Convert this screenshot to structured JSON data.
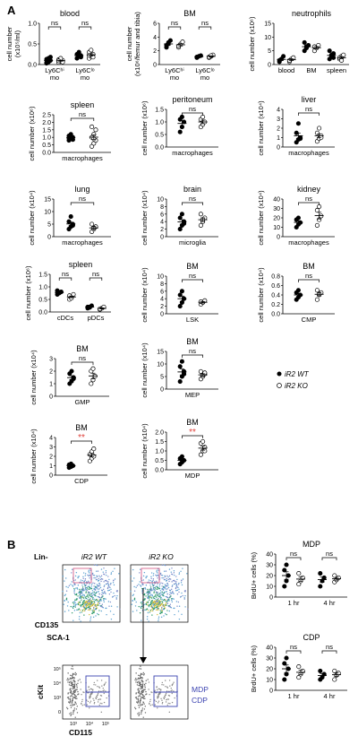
{
  "panel_labels": {
    "a": "A",
    "b": "B"
  },
  "legend": {
    "wt": "iR2 WT",
    "ko": "iR2 KO"
  },
  "ns": "ns",
  "sig": "**",
  "panels": [
    {
      "title": "blood",
      "ylabel": [
        "cell number",
        "(x10⁵/ml)"
      ],
      "yticks": [
        "0.0",
        "0.5",
        "1.0"
      ],
      "ymax": 1.0,
      "groups": [
        {
          "label": [
            "Ly6Cʰⁱ",
            "mo"
          ],
          "wt": [
            0.05,
            0.08,
            0.1,
            0.13,
            0.15,
            0.18,
            0.03,
            0.06
          ],
          "ko": [
            0.05,
            0.08,
            0.1,
            0.12,
            0.15,
            0.06,
            0.09
          ]
        },
        {
          "label": [
            "Ly6Cˡᵒ",
            "mo"
          ],
          "wt": [
            0.15,
            0.2,
            0.22,
            0.25,
            0.3,
            0.18
          ],
          "ko": [
            0.15,
            0.2,
            0.25,
            0.3,
            0.35,
            0.18,
            0.22
          ]
        }
      ],
      "ns": [
        true,
        true
      ]
    },
    {
      "title": "BM",
      "ylabel": [
        "cell number",
        "(x10⁶/femur and tibia)"
      ],
      "yticks": [
        "0",
        "2",
        "4",
        "6"
      ],
      "ymax": 6,
      "groups": [
        {
          "label": [
            "Ly6Cʰⁱ",
            "mo"
          ],
          "wt": [
            2.5,
            3.0,
            3.5,
            2.8,
            3.2
          ],
          "ko": [
            2.5,
            3.0,
            3.3,
            2.7
          ]
        },
        {
          "label": [
            "Ly6Cˡᵒ",
            "mo"
          ],
          "wt": [
            1.0,
            1.2,
            1.3,
            1.1
          ],
          "ko": [
            1.0,
            1.2,
            1.4,
            1.1,
            1.3
          ]
        }
      ],
      "ns": [
        true,
        true
      ]
    },
    {
      "title": "neutrophils",
      "ylabel": [
        "cell number (x10⁶)"
      ],
      "yticks": [
        "0",
        "5",
        "10",
        "15"
      ],
      "ymax": 15,
      "groups": [
        {
          "label": [
            "blood"
          ],
          "wt": [
            1,
            2,
            3,
            1.5
          ],
          "ko": [
            1,
            2,
            2.5,
            1.5
          ]
        },
        {
          "label": [
            "BM"
          ],
          "wt": [
            5,
            6,
            7,
            8,
            6.5
          ],
          "ko": [
            5,
            6,
            7,
            6.5
          ]
        },
        {
          "label": [
            "spleen"
          ],
          "wt": [
            2,
            3,
            4,
            5,
            3.5,
            2.5
          ],
          "ko": [
            2,
            3,
            3.5,
            2.5,
            1.5
          ]
        }
      ],
      "ns": []
    },
    {
      "title": "spleen",
      "ylabel": [
        "cell number (x10⁶)"
      ],
      "yticks": [
        "0.0",
        "0.5",
        "1.0",
        "1.5",
        "2.0",
        "2.5"
      ],
      "ymax": 2.5,
      "groups": [
        {
          "label": [
            "macrophages"
          ],
          "wt": [
            0.8,
            0.9,
            1.0,
            1.1,
            1.2,
            0.85,
            0.95,
            1.05
          ],
          "ko": [
            0.4,
            0.6,
            0.8,
            1.0,
            1.2,
            1.5,
            1.7,
            0.9
          ]
        }
      ],
      "ns": [
        true
      ]
    },
    {
      "title": "peritoneum",
      "ylabel": [
        "cell number (x10⁶)"
      ],
      "yticks": [
        "0.0",
        "0.5",
        "1.0",
        "1.5"
      ],
      "ymax": 1.5,
      "groups": [
        {
          "label": [
            "macrophages"
          ],
          "wt": [
            0.6,
            0.8,
            1.0,
            1.1,
            1.2
          ],
          "ko": [
            0.8,
            0.9,
            1.0,
            1.1,
            1.2
          ]
        }
      ],
      "ns": [
        true
      ]
    },
    {
      "title": "liver",
      "ylabel": [
        "cell number (x10⁴)"
      ],
      "yticks": [
        "0",
        "1",
        "2",
        "3",
        "4"
      ],
      "ymax": 4,
      "groups": [
        {
          "label": [
            "macrophages"
          ],
          "wt": [
            0.5,
            0.8,
            1.0,
            1.5,
            2.5,
            0.9
          ],
          "ko": [
            0.6,
            0.9,
            1.2,
            1.5,
            2.0,
            1.0
          ]
        }
      ],
      "ns": [
        true
      ]
    },
    {
      "title": "lung",
      "ylabel": [
        "cell number (x10⁴)"
      ],
      "yticks": [
        "0",
        "5",
        "10",
        "15"
      ],
      "ymax": 15,
      "groups": [
        {
          "label": [
            "macrophages"
          ],
          "wt": [
            3,
            4,
            5,
            6,
            8,
            4.5
          ],
          "ko": [
            2,
            3,
            4,
            5,
            3.5
          ]
        }
      ],
      "ns": [
        true
      ]
    },
    {
      "title": "brain",
      "ylabel": [
        "cell number (x10⁴)"
      ],
      "yticks": [
        "0",
        "2",
        "4",
        "6",
        "8",
        "10"
      ],
      "ymax": 10,
      "groups": [
        {
          "label": [
            "microglia"
          ],
          "wt": [
            2,
            3,
            4,
            5,
            6,
            3.5
          ],
          "ko": [
            3,
            4,
            5,
            6,
            4.5
          ]
        }
      ],
      "ns": [
        true
      ]
    },
    {
      "title": "kidney",
      "ylabel": [
        "cell number (x10⁴)"
      ],
      "yticks": [
        "0",
        "10",
        "20",
        "30",
        "40"
      ],
      "ymax": 40,
      "groups": [
        {
          "label": [
            "macrophages"
          ],
          "wt": [
            10,
            13,
            15,
            18,
            20
          ],
          "ko": [
            12,
            18,
            22,
            28,
            32
          ]
        }
      ],
      "ns": [
        true
      ]
    },
    {
      "title": "spleen",
      "ylabel": [
        "cell number (x10⁶)"
      ],
      "yticks": [
        "0.0",
        "0.5",
        "1.0",
        "1.5"
      ],
      "ymax": 1.5,
      "groups": [
        {
          "label": [
            "cDCs"
          ],
          "wt": [
            0.7,
            0.75,
            0.8,
            0.85,
            0.78
          ],
          "ko": [
            0.5,
            0.6,
            0.7,
            0.65,
            0.55
          ]
        },
        {
          "label": [
            "pDCs"
          ],
          "wt": [
            0.15,
            0.2,
            0.25,
            0.2,
            0.18
          ],
          "ko": [
            0.1,
            0.15,
            0.2,
            0.12
          ]
        }
      ],
      "ns": [
        true,
        true
      ]
    },
    {
      "title": "BM",
      "ylabel": [
        "cell number (x10⁴)"
      ],
      "yticks": [
        "0",
        "2",
        "4",
        "6",
        "8",
        "10"
      ],
      "ymax": 10,
      "groups": [
        {
          "label": [
            "LSK"
          ],
          "wt": [
            2,
            3,
            4,
            5,
            6
          ],
          "ko": [
            2.5,
            3,
            3.5,
            3.2
          ]
        }
      ],
      "ns": [
        true
      ]
    },
    {
      "title": "BM",
      "ylabel": [
        "cell number (x10⁴)"
      ],
      "yticks": [
        "0.0",
        "0.2",
        "0.4",
        "0.6",
        "0.8"
      ],
      "ymax": 0.8,
      "groups": [
        {
          "label": [
            "CMP"
          ],
          "wt": [
            0.3,
            0.35,
            0.4,
            0.45,
            0.5
          ],
          "ko": [
            0.3,
            0.4,
            0.45,
            0.5,
            0.42
          ]
        }
      ],
      "ns": [
        true
      ]
    },
    {
      "title": "BM",
      "ylabel": [
        "cell number (x10⁴)"
      ],
      "yticks": [
        "0",
        "1",
        "2",
        "3"
      ],
      "ymax": 3,
      "groups": [
        {
          "label": [
            "GMP"
          ],
          "wt": [
            1.0,
            1.2,
            1.5,
            1.8,
            2.0,
            1.4
          ],
          "ko": [
            1.0,
            1.3,
            1.6,
            2.0,
            2.2
          ]
        }
      ],
      "ns": [
        true
      ]
    },
    {
      "title": "BM",
      "ylabel": [
        "cell number (x10⁴)"
      ],
      "yticks": [
        "0",
        "5",
        "10",
        "15"
      ],
      "ymax": 15,
      "groups": [
        {
          "label": [
            "MEP"
          ],
          "wt": [
            3,
            5,
            7,
            9,
            11,
            6
          ],
          "ko": [
            4,
            5,
            6,
            7,
            5.5,
            6.5
          ]
        }
      ],
      "ns": [
        true
      ]
    },
    {
      "title": "BM",
      "ylabel": [
        "cell number (x10⁴)"
      ],
      "yticks": [
        "0",
        "1",
        "2",
        "3",
        "4"
      ],
      "ymax": 4,
      "groups": [
        {
          "label": [
            "CDP"
          ],
          "wt": [
            0.8,
            0.9,
            1.0,
            1.1,
            1.2
          ],
          "ko": [
            1.5,
            1.8,
            2.0,
            2.2,
            2.5,
            2.8
          ]
        }
      ],
      "ns": [
        false
      ],
      "sig": [
        true
      ]
    },
    {
      "title": "BM",
      "ylabel": [
        "cell number (x10⁴)"
      ],
      "yticks": [
        "0.0",
        "0.5",
        "1.0",
        "1.5",
        "2.0"
      ],
      "ymax": 2.0,
      "groups": [
        {
          "label": [
            "MDP"
          ],
          "wt": [
            0.3,
            0.4,
            0.5,
            0.6,
            0.7
          ],
          "ko": [
            0.8,
            1.0,
            1.2,
            1.4,
            1.5,
            1.0
          ]
        }
      ],
      "ns": [
        false
      ],
      "sig": [
        true
      ]
    },
    {
      "title": "MDP",
      "ylabel": [
        "BrdU+ cells (%)"
      ],
      "yticks": [
        "0",
        "10",
        "20",
        "30",
        "40"
      ],
      "ymax": 40,
      "groups": [
        {
          "label": [
            "1 hr"
          ],
          "wt": [
            10,
            15,
            20,
            25,
            30
          ],
          "ko": [
            12,
            15,
            18,
            22
          ]
        },
        {
          "label": [
            "4 hr"
          ],
          "wt": [
            10,
            15,
            18,
            22
          ],
          "ko": [
            14,
            16,
            18,
            20
          ]
        }
      ],
      "ns": [
        true,
        true
      ]
    },
    {
      "title": "CDP",
      "ylabel": [
        "BrdU+ cells (%)"
      ],
      "yticks": [
        "0",
        "10",
        "20",
        "30",
        "40"
      ],
      "ymax": 40,
      "groups": [
        {
          "label": [
            "1 hr"
          ],
          "wt": [
            10,
            15,
            20,
            25,
            30
          ],
          "ko": [
            12,
            15,
            18,
            22
          ]
        },
        {
          "label": [
            "4 hr"
          ],
          "wt": [
            10,
            12,
            15,
            18
          ],
          "ko": [
            10,
            14,
            16,
            18
          ]
        }
      ],
      "ns": [
        true,
        true
      ]
    }
  ],
  "flow": {
    "lin": "Lin-",
    "wt": "iR2 WT",
    "ko": "iR2 KO",
    "y_top": "CD135",
    "x_top": "SCA-1",
    "y_bot": "cKit",
    "x_bot": "CD115",
    "gate_mdp": "MDP",
    "gate_cdp": "CDP",
    "yticks_bot": [
      "10⁵",
      "10⁴",
      "10³",
      "0"
    ],
    "xticks_bot": [
      "10³",
      "10⁴",
      "10⁵"
    ]
  },
  "colors": {
    "sig": "#e0403a",
    "gate": "#3b43b0",
    "gate_red": "#d04a7a"
  }
}
